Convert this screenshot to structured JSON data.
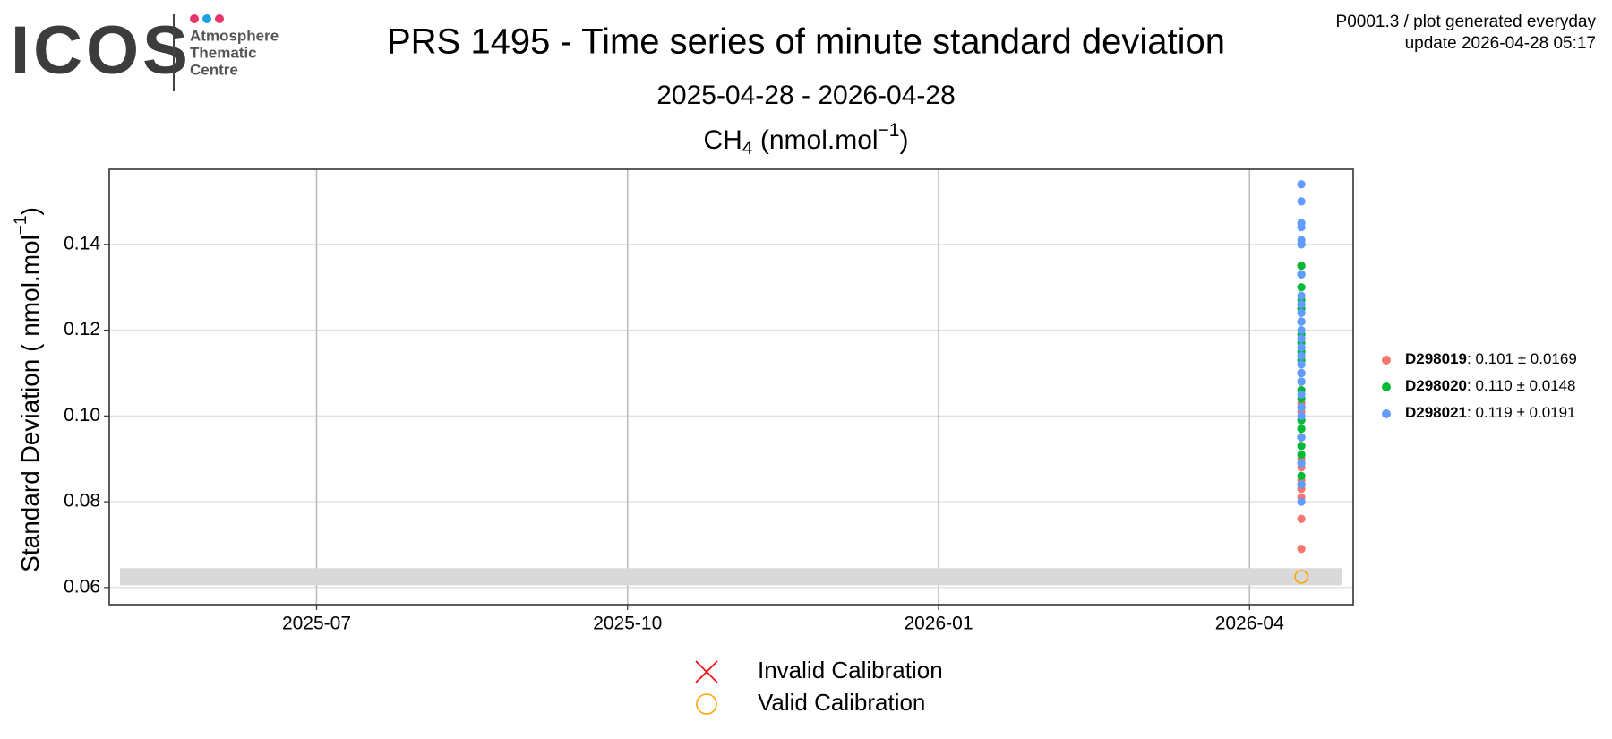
{
  "header": {
    "logo": "ICOS",
    "logo_lines": [
      "Atmosphere",
      "Thematic",
      "Centre"
    ],
    "info_lines": [
      "P0001.3 / plot generated everyday",
      "update  2026-04-28 05:17"
    ]
  },
  "chart_data": {
    "type": "scatter",
    "title": "PRS 1495 - Time series of minute standard deviation",
    "subtitle": "2025-04-28 - 2026-04-28",
    "panel_title": {
      "main": "CH",
      "sub": "4",
      "unit": " (nmol.mol",
      "sup": "−1",
      "close": ")"
    },
    "y_label": {
      "main": "Standard Deviation ( nmol.mol",
      "sup": "−1",
      "close": ")"
    },
    "x_month": "2026-04",
    "xlim": [
      "2025-05",
      "2026-05"
    ],
    "xticks": [
      "2025-07",
      "2025-10",
      "2026-01",
      "2026-04"
    ],
    "ylim": [
      0.056,
      0.1575
    ],
    "yticks": [
      0.06,
      0.08,
      {
        "value": 0.1,
        "label": "0.10"
      },
      0.12,
      0.14
    ],
    "grid": true,
    "band_ylim": [
      0.0605,
      0.0645
    ],
    "legend_position": "right",
    "series": [
      {
        "name": "D298019",
        "summary": ": 0.101 ± 0.0169",
        "color": "#F8766D",
        "values": [
          0.069,
          0.076,
          0.081,
          0.083,
          0.085,
          0.088,
          0.09,
          0.093,
          0.095,
          0.097,
          0.099,
          0.101,
          0.103,
          0.106,
          0.108,
          0.11,
          0.112,
          0.115,
          0.118,
          0.122,
          0.126,
          0.135
        ]
      },
      {
        "name": "D298020",
        "summary": ": 0.110 ± 0.0148",
        "color": "#00BA38",
        "values": [
          0.084,
          0.086,
          0.089,
          0.091,
          0.093,
          0.095,
          0.097,
          0.099,
          0.102,
          0.104,
          0.106,
          0.108,
          0.11,
          0.113,
          0.115,
          0.117,
          0.119,
          0.122,
          0.125,
          0.127,
          0.13,
          0.133,
          0.135,
          0.14
        ]
      },
      {
        "name": "D298021",
        "summary": ": 0.119 ± 0.0191",
        "color": "#619CFF",
        "values": [
          0.08,
          0.084,
          0.089,
          0.095,
          0.1,
          0.102,
          0.105,
          0.108,
          0.11,
          0.112,
          0.114,
          0.116,
          0.118,
          0.12,
          0.122,
          0.124,
          0.126,
          0.128,
          0.133,
          0.14,
          0.141,
          0.144,
          0.145,
          0.15,
          0.154
        ]
      }
    ],
    "calibrations": [
      {
        "x": "2026-04",
        "value": 0.0625,
        "color": "#FFA500"
      }
    ],
    "calibration_legend": [
      {
        "label": "Invalid Calibration",
        "color": "#FF0000"
      },
      {
        "label": "Valid Calibration",
        "color": "#FFA500"
      }
    ]
  }
}
